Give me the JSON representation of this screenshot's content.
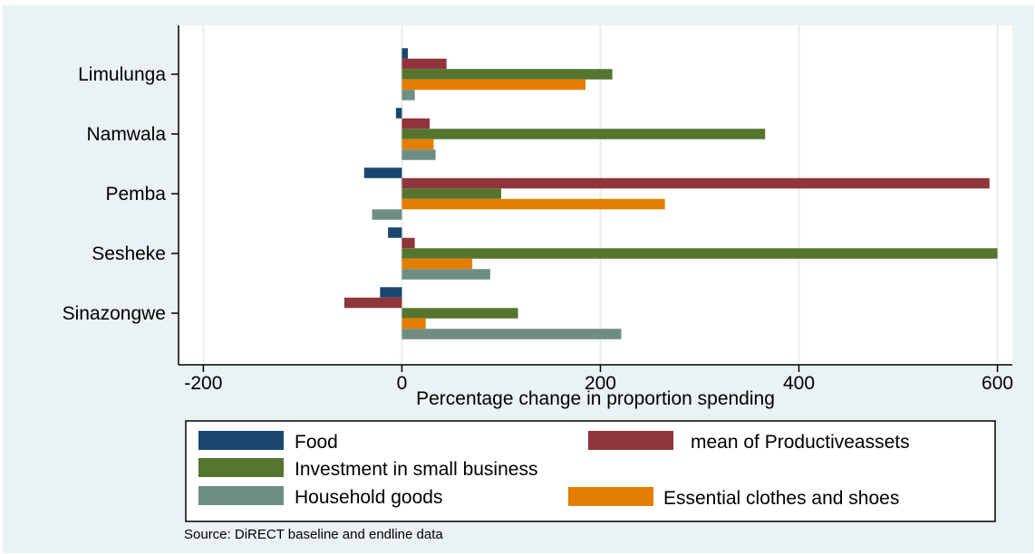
{
  "chart_data": {
    "type": "bar",
    "orientation": "horizontal",
    "categories": [
      "Limulunga",
      "Namwala",
      "Pemba",
      "Sesheke",
      "Sinazongwe"
    ],
    "series": [
      {
        "name": "Food",
        "color": "#1a476f",
        "values": [
          6,
          -6,
          -38,
          -14,
          -22
        ]
      },
      {
        "name": "mean of Productiveassets",
        "color": "#90353b",
        "values": [
          45,
          28,
          592,
          13,
          -58
        ]
      },
      {
        "name": "Investment in small business",
        "color": "#55752f",
        "values": [
          212,
          366,
          100,
          600,
          117
        ]
      },
      {
        "name": "Essential clothes and shoes",
        "color": "#e37e00",
        "values": [
          185,
          32,
          265,
          71,
          24
        ]
      },
      {
        "name": "Household goods",
        "color": "#6e8e84",
        "values": [
          13,
          34,
          -30,
          89,
          221
        ]
      }
    ],
    "xlabel": "Percentage change in proportion spending",
    "ylabel": "",
    "xlim": [
      -225,
      615
    ],
    "xticks": [
      -200,
      0,
      200,
      400,
      600
    ],
    "xtick_labels": [
      "-200",
      "0",
      "200",
      "400",
      "600"
    ],
    "grid": true,
    "legend": {
      "placement": "bottom",
      "entries": [
        {
          "label": "Food",
          "color": "#1a476f"
        },
        {
          "label": "mean of Productiveassets",
          "color": "#90353b"
        },
        {
          "label": "Investment in small business",
          "color": "#55752f"
        },
        {
          "label": "Household goods",
          "color": "#6e8e84"
        },
        {
          "label": "Essential clothes and shoes",
          "color": "#e37e00"
        }
      ]
    },
    "note": "Source:  DiRECT baseline and endline data"
  }
}
